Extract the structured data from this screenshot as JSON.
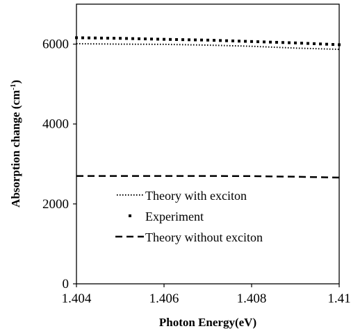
{
  "chart_data": {
    "type": "line",
    "title": "",
    "xlabel": "Photon Energy(eV)",
    "ylabel_main": "Absorption change (cm",
    "ylabel_sup": "-1",
    "ylabel_tail": ")",
    "xlim": [
      1.404,
      1.41
    ],
    "ylim": [
      0,
      7000
    ],
    "x_ticks": [
      1.404,
      1.406,
      1.408,
      1.41
    ],
    "x_tick_labels": [
      "1.404",
      "1.406",
      "1.408",
      "1.41"
    ],
    "y_ticks": [
      0,
      2000,
      4000,
      6000
    ],
    "y_tick_labels": [
      "0",
      "2000",
      "4000",
      "6000"
    ],
    "grid": false,
    "legend_placement": "lower-left",
    "series": [
      {
        "name": "Theory with exciton",
        "style": "dotted",
        "color": "#000000",
        "x": [
          1.404,
          1.405,
          1.406,
          1.407,
          1.408,
          1.409,
          1.41
        ],
        "y": [
          6010,
          6000,
          5995,
          5975,
          5945,
          5900,
          5870
        ]
      },
      {
        "name": "Experiment",
        "style": "square-markers",
        "color": "#000000",
        "x": [
          1.404,
          1.405,
          1.406,
          1.407,
          1.408,
          1.409,
          1.41
        ],
        "y": [
          6160,
          6145,
          6120,
          6100,
          6065,
          6030,
          5985
        ]
      },
      {
        "name": "Theory without exciton",
        "style": "dashed",
        "color": "#000000",
        "x": [
          1.404,
          1.405,
          1.406,
          1.407,
          1.408,
          1.409,
          1.41
        ],
        "y": [
          2700,
          2700,
          2700,
          2700,
          2695,
          2680,
          2660
        ]
      }
    ]
  }
}
